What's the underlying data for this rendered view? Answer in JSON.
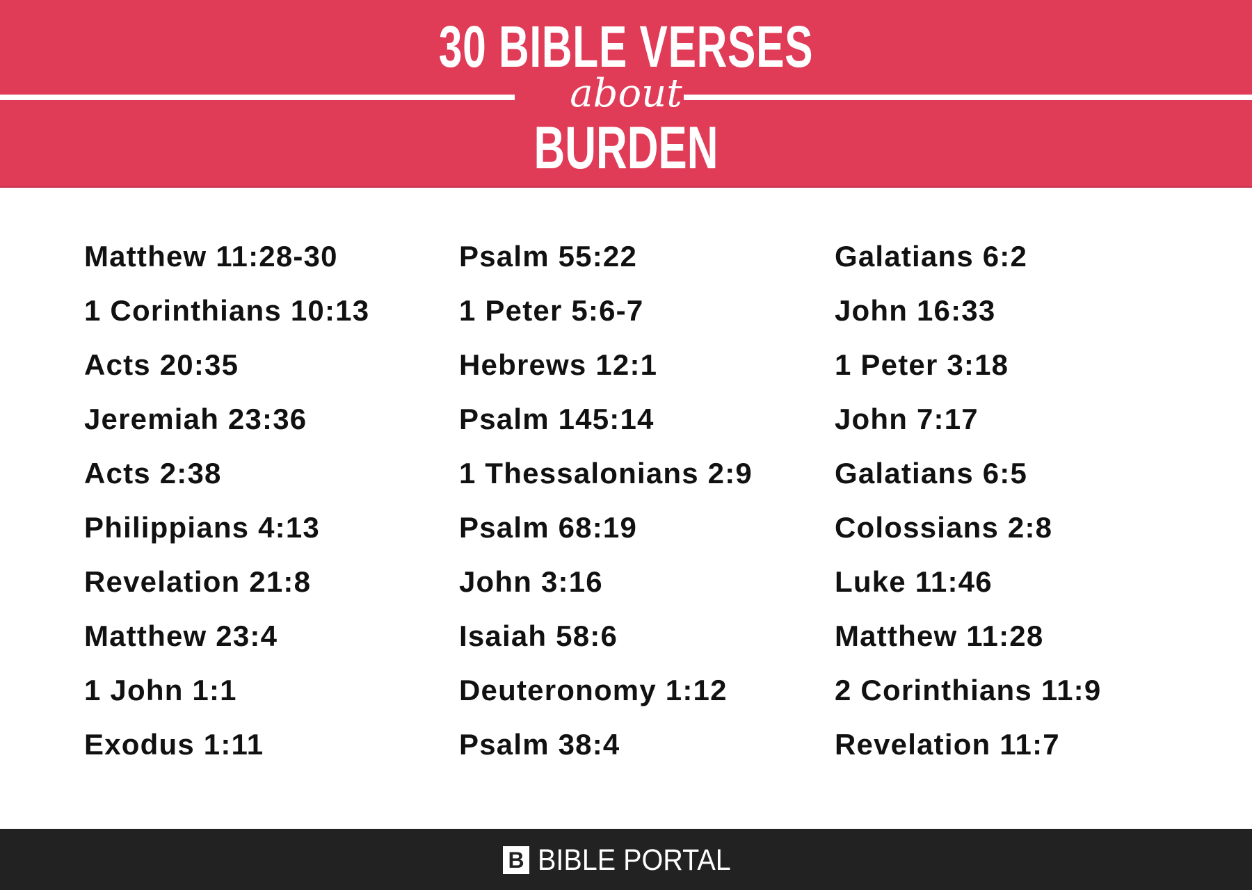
{
  "header": {
    "title_top": "30 BIBLE VERSES",
    "title_connector": "about",
    "title_topic": "BURDEN",
    "background_color": "#e03b57"
  },
  "columns": [
    [
      "Matthew 11:28-30",
      "1 Corinthians 10:13",
      "Acts 20:35",
      "Jeremiah 23:36",
      "Acts 2:38",
      "Philippians 4:13",
      "Revelation 21:8",
      "Matthew 23:4",
      "1 John 1:1",
      "Exodus 1:11"
    ],
    [
      "Psalm 55:22",
      "1 Peter 5:6-7",
      "Hebrews 12:1",
      "Psalm 145:14",
      "1 Thessalonians 2:9",
      "Psalm 68:19",
      "John 3:16",
      "Isaiah 58:6",
      "Deuteronomy 1:12",
      "Psalm 38:4"
    ],
    [
      "Galatians 6:2",
      "John 16:33",
      "1 Peter 3:18",
      "John 7:17",
      "Galatians 6:5",
      "Colossians 2:8",
      "Luke 11:46",
      "Matthew 11:28",
      "2 Corinthians 11:9",
      "Revelation 11:7"
    ]
  ],
  "footer": {
    "logo_letter": "B",
    "brand": "BIBLE PORTAL",
    "background_color": "#222222"
  }
}
